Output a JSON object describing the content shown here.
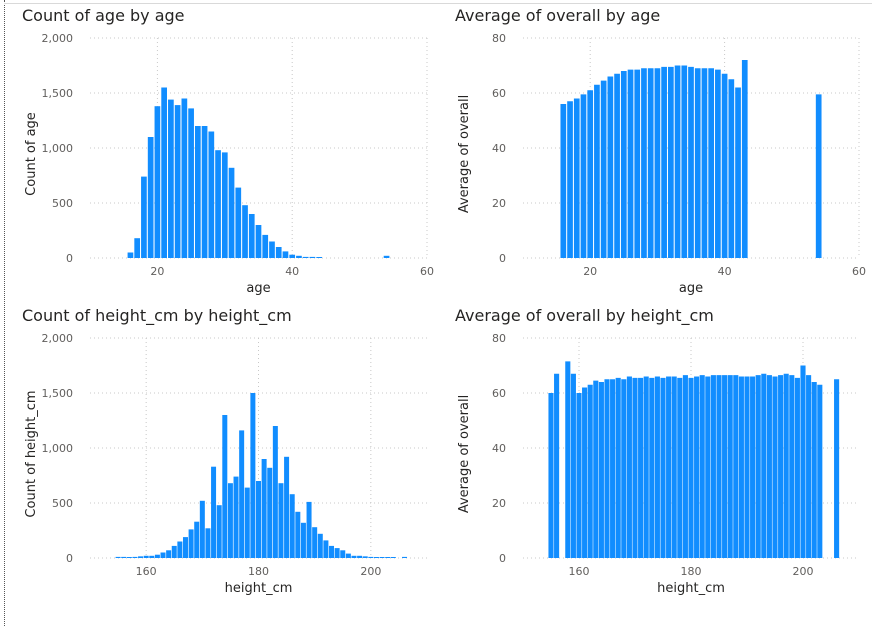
{
  "colors": {
    "bar": "#118DFF"
  },
  "chart_data": [
    {
      "type": "bar",
      "title": "Count of age by age",
      "xlabel": "age",
      "ylabel": "Count of age",
      "xlim": [
        10,
        60
      ],
      "ylim": [
        0,
        2000
      ],
      "xticks": [
        20,
        40,
        60
      ],
      "yticks": [
        0,
        500,
        1000,
        1500,
        2000
      ],
      "ytick_labels": [
        "0",
        "500",
        "1,000",
        "1,500",
        "2,000"
      ],
      "grid": true,
      "x": [
        16,
        17,
        18,
        19,
        20,
        21,
        22,
        23,
        24,
        25,
        26,
        27,
        28,
        29,
        30,
        31,
        32,
        33,
        34,
        35,
        36,
        37,
        38,
        39,
        40,
        41,
        42,
        43,
        44,
        54
      ],
      "values": [
        50,
        180,
        740,
        1100,
        1380,
        1550,
        1440,
        1390,
        1450,
        1360,
        1200,
        1200,
        1150,
        980,
        960,
        820,
        640,
        480,
        400,
        300,
        210,
        150,
        100,
        60,
        30,
        20,
        10,
        10,
        5,
        20
      ]
    },
    {
      "type": "bar",
      "title": "Average of overall by age",
      "xlabel": "age",
      "ylabel": "Average of overall",
      "xlim": [
        10,
        60
      ],
      "ylim": [
        0,
        80
      ],
      "xticks": [
        20,
        40,
        60
      ],
      "yticks": [
        0,
        20,
        40,
        60,
        80
      ],
      "ytick_labels": [
        "0",
        "20",
        "40",
        "60",
        "80"
      ],
      "grid": true,
      "x": [
        16,
        17,
        18,
        19,
        20,
        21,
        22,
        23,
        24,
        25,
        26,
        27,
        28,
        29,
        30,
        31,
        32,
        33,
        34,
        35,
        36,
        37,
        38,
        39,
        40,
        41,
        42,
        43,
        54
      ],
      "values": [
        56,
        57,
        58,
        59.5,
        61,
        63,
        64.5,
        66,
        67,
        68,
        68.5,
        68.5,
        69,
        69,
        69,
        69.5,
        69.5,
        70,
        70,
        69.5,
        69,
        69,
        69,
        68.5,
        67,
        65,
        62,
        72,
        59.5
      ]
    },
    {
      "type": "bar",
      "title": "Count of height_cm by height_cm",
      "xlabel": "height_cm",
      "ylabel": "Count of height_cm",
      "xlim": [
        150,
        210
      ],
      "ylim": [
        0,
        2000
      ],
      "xticks": [
        160,
        180,
        200
      ],
      "yticks": [
        0,
        500,
        1000,
        1500,
        2000
      ],
      "ytick_labels": [
        "0",
        "500",
        "1,000",
        "1,500",
        "2,000"
      ],
      "grid": true,
      "x": [
        155,
        156,
        157,
        158,
        159,
        160,
        161,
        162,
        163,
        164,
        165,
        166,
        167,
        168,
        169,
        170,
        171,
        172,
        173,
        174,
        175,
        176,
        177,
        178,
        179,
        180,
        181,
        182,
        183,
        184,
        185,
        186,
        187,
        188,
        189,
        190,
        191,
        192,
        193,
        194,
        195,
        196,
        197,
        198,
        199,
        200,
        201,
        202,
        203,
        204,
        206
      ],
      "values": [
        10,
        10,
        5,
        10,
        15,
        20,
        20,
        30,
        50,
        70,
        110,
        150,
        190,
        260,
        330,
        520,
        270,
        830,
        480,
        1300,
        680,
        740,
        1160,
        640,
        1500,
        700,
        900,
        820,
        1200,
        680,
        920,
        580,
        420,
        320,
        510,
        280,
        220,
        160,
        110,
        90,
        70,
        40,
        20,
        20,
        15,
        10,
        5,
        5,
        5,
        5,
        10
      ]
    },
    {
      "type": "bar",
      "title": "Average of overall by height_cm",
      "xlabel": "height_cm",
      "ylabel": "Average of overall",
      "xlim": [
        150,
        210
      ],
      "ylim": [
        0,
        80
      ],
      "xticks": [
        160,
        180,
        200
      ],
      "yticks": [
        0,
        20,
        40,
        60,
        80
      ],
      "ytick_labels": [
        "0",
        "20",
        "40",
        "60",
        "80"
      ],
      "grid": true,
      "x": [
        155,
        156,
        158,
        159,
        160,
        161,
        162,
        163,
        164,
        165,
        166,
        167,
        168,
        169,
        170,
        171,
        172,
        173,
        174,
        175,
        176,
        177,
        178,
        179,
        180,
        181,
        182,
        183,
        184,
        185,
        186,
        187,
        188,
        189,
        190,
        191,
        192,
        193,
        194,
        195,
        196,
        197,
        198,
        199,
        200,
        201,
        202,
        203,
        206
      ],
      "values": [
        60,
        67,
        71.5,
        67,
        60,
        62,
        63,
        64.5,
        64,
        65,
        65,
        65.5,
        65,
        66,
        65.5,
        65.5,
        66,
        65.5,
        66,
        65.5,
        66,
        66,
        65.5,
        66.5,
        65.5,
        66,
        66.5,
        66,
        66.5,
        66.5,
        66.5,
        66.5,
        66.5,
        66,
        66,
        66,
        66.5,
        67,
        66.5,
        66,
        66.5,
        67,
        66.5,
        65.5,
        70,
        66.5,
        64,
        63,
        65
      ]
    }
  ]
}
